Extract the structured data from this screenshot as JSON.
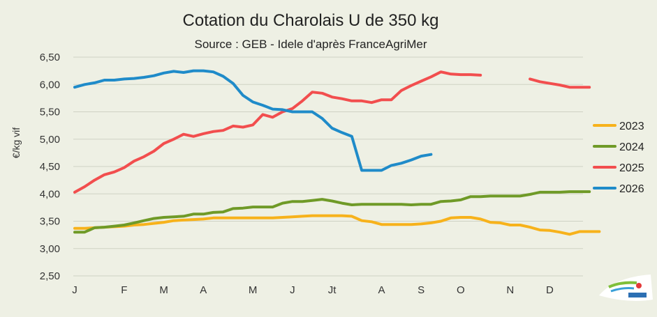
{
  "chart_data": {
    "type": "line",
    "title": "Cotation du Charolais U de 350 kg",
    "subtitle": "Source : GEB - Idele d'après FranceAgriMer",
    "ylabel": "€/kg vif",
    "xlabel": "",
    "ylim": [
      2.5,
      6.5
    ],
    "yticks": [
      "2,50",
      "3,00",
      "3,50",
      "4,00",
      "4,50",
      "5,00",
      "5,50",
      "6,00",
      "6,50"
    ],
    "x_range": [
      1,
      52
    ],
    "month_labels": [
      {
        "label": "J",
        "week": 1
      },
      {
        "label": "F",
        "week": 6
      },
      {
        "label": "M",
        "week": 10
      },
      {
        "label": "A",
        "week": 14
      },
      {
        "label": "M",
        "week": 19
      },
      {
        "label": "J",
        "week": 23
      },
      {
        "label": "Jt",
        "week": 27
      },
      {
        "label": "A",
        "week": 32
      },
      {
        "label": "S",
        "week": 36
      },
      {
        "label": "O",
        "week": 40
      },
      {
        "label": "N",
        "week": 45
      },
      {
        "label": "D",
        "week": 49
      }
    ],
    "grid": true,
    "legend_position": "right",
    "series": [
      {
        "name": "2023",
        "color": "#f7b21b",
        "values": [
          3.37,
          3.37,
          3.38,
          3.39,
          3.4,
          3.41,
          3.43,
          3.44,
          3.46,
          3.48,
          3.51,
          3.52,
          3.53,
          3.54,
          3.56,
          3.56,
          3.56,
          3.56,
          3.56,
          3.56,
          3.56,
          3.57,
          3.58,
          3.59,
          3.6,
          3.6,
          3.6,
          3.6,
          3.59,
          3.51,
          3.49,
          3.44,
          3.44,
          3.44,
          3.44,
          3.45,
          3.47,
          3.5,
          3.56,
          3.57,
          3.57,
          3.54,
          3.48,
          3.47,
          3.43,
          3.43,
          3.39,
          3.34,
          3.33,
          3.3,
          3.26,
          3.31,
          3.31,
          3.31
        ]
      },
      {
        "name": "2024",
        "color": "#6f9a27",
        "values": [
          3.3,
          3.3,
          3.38,
          3.39,
          3.41,
          3.43,
          3.47,
          3.51,
          3.55,
          3.57,
          3.58,
          3.59,
          3.63,
          3.63,
          3.66,
          3.67,
          3.73,
          3.74,
          3.76,
          3.76,
          3.76,
          3.83,
          3.86,
          3.86,
          3.88,
          3.9,
          3.87,
          3.83,
          3.8,
          3.81,
          3.81,
          3.81,
          3.81,
          3.81,
          3.8,
          3.81,
          3.81,
          3.86,
          3.87,
          3.89,
          3.95,
          3.95,
          3.96,
          3.96,
          3.96,
          3.96,
          3.99,
          4.03,
          4.03,
          4.03,
          4.04,
          4.04,
          4.04
        ]
      },
      {
        "name": "2025",
        "color": "#f24e4e",
        "values": [
          4.03,
          4.13,
          4.25,
          4.35,
          4.4,
          4.48,
          4.6,
          4.68,
          4.78,
          4.92,
          5.0,
          5.09,
          5.05,
          5.1,
          5.14,
          5.16,
          5.24,
          5.22,
          5.26,
          5.45,
          5.4,
          5.5,
          5.56,
          5.7,
          5.86,
          5.84,
          5.77,
          5.74,
          5.7,
          5.7,
          5.67,
          5.72,
          5.72,
          5.89,
          5.98,
          6.06,
          6.14,
          6.23,
          6.19,
          6.18,
          6.18,
          6.17,
          null,
          null,
          null,
          null,
          6.1,
          6.05,
          6.02,
          5.99,
          5.95,
          5.95,
          5.95
        ]
      },
      {
        "name": "2026",
        "color": "#1f8bc9",
        "values": [
          5.95,
          6.0,
          6.03,
          6.08,
          6.08,
          6.1,
          6.11,
          6.13,
          6.16,
          6.21,
          6.24,
          6.22,
          6.25,
          6.25,
          6.23,
          6.15,
          6.02,
          5.8,
          5.68,
          5.62,
          5.55,
          5.54,
          5.5,
          5.5,
          5.5,
          5.38,
          5.2,
          5.12,
          5.05,
          4.43,
          4.43,
          4.43,
          4.52,
          4.56,
          4.62,
          4.69,
          4.72
        ]
      }
    ]
  }
}
